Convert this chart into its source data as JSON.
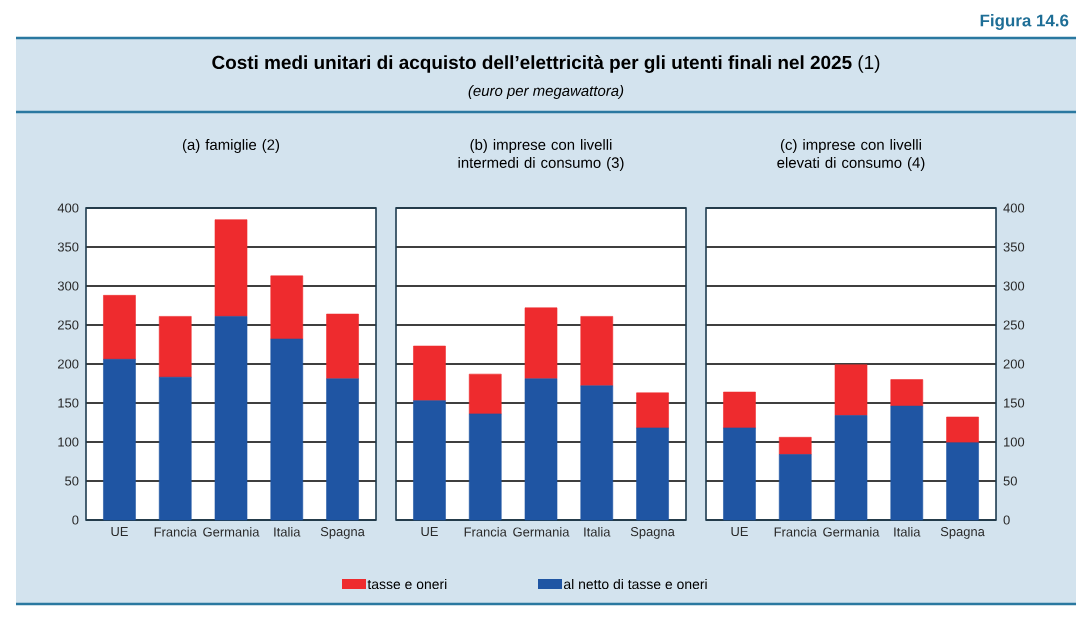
{
  "chart_data": [
    {
      "type": "bar",
      "title": "(a) famiglie (2)",
      "stacked": true,
      "grid": "y",
      "legend": "bottom",
      "annotations": [
        "Figura 14.6",
        "**Costi medi unitari di acquisto dell’elettricità per gli utenti finali nel 2025** (1)",
        "(euro per megawattora)"
      ],
      "categories": [
        "UE",
        "Francia",
        "Germania",
        "Italia",
        "Spagna"
      ],
      "ylim": [
        0,
        400
      ],
      "yticks": [
        0,
        50,
        100,
        150,
        200,
        250,
        300,
        350,
        400
      ],
      "series": [
        {
          "name": "al netto di tasse e oneri",
          "color": "#1f55a3",
          "values": [
            206,
            183,
            261,
            232,
            181
          ]
        },
        {
          "name": "tasse e oneri",
          "color": "#ee2b2e",
          "values": [
            82,
            78,
            124,
            81,
            83
          ]
        }
      ]
    },
    {
      "type": "bar",
      "title": "(b) imprese con livelli intermedi di consumo (3)",
      "stacked": true,
      "grid": "y",
      "tick_labels": "x",
      "categories": [
        "UE",
        "Francia",
        "Germania",
        "Italia",
        "Spagna"
      ],
      "ylim": [
        0,
        400
      ],
      "yticks": [
        0,
        50,
        100,
        150,
        200,
        250,
        300,
        350,
        400
      ],
      "series": [
        {
          "color": "#1f55a3",
          "values": [
            153,
            136,
            181,
            172,
            118
          ]
        },
        {
          "color": "#ee2b2e",
          "values": [
            70,
            51,
            91,
            89,
            45
          ]
        }
      ]
    },
    {
      "type": "bar",
      "title": "(c) imprese con livelli elevati di consumo (4)",
      "stacked": true,
      "grid": "y",
      "categories": [
        "UE",
        "Francia",
        "Germania",
        "Italia",
        "Spagna"
      ],
      "ylim": [
        0,
        400
      ],
      "yticks": [
        0,
        50,
        100,
        150,
        200,
        250,
        300,
        350,
        400
      ],
      "series": [
        {
          "color": "#1f55a3",
          "values": [
            118,
            84,
            134,
            146,
            99
          ]
        },
        {
          "color": "#ee2b2e",
          "values": [
            46,
            22,
            65,
            34,
            33
          ]
        }
      ]
    }
  ]
}
